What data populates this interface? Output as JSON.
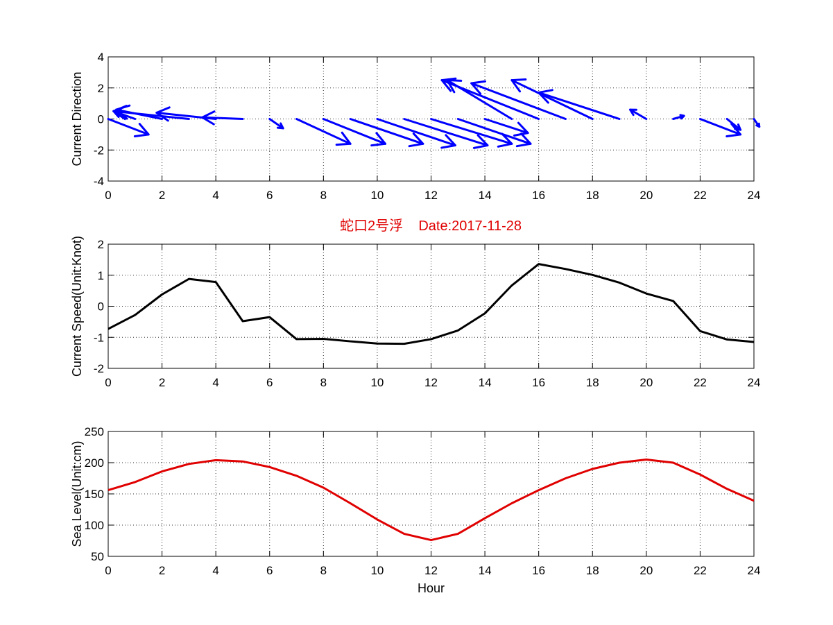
{
  "figure": {
    "title": "蛇口2号浮    Date:2017-11-28",
    "title_color": "#e00000"
  },
  "chart_data": [
    {
      "type": "quiver",
      "title": "",
      "xlabel": "",
      "ylabel": "Current Direction",
      "xlim": [
        0,
        24
      ],
      "ylim": [
        -4,
        4
      ],
      "xticks": [
        0,
        2,
        4,
        6,
        8,
        10,
        12,
        14,
        16,
        18,
        20,
        22,
        24
      ],
      "yticks": [
        -4,
        -2,
        0,
        2,
        4
      ],
      "grid": true,
      "color": "#0000ff",
      "series": [
        {
          "x": [
            0,
            1,
            2,
            3,
            4,
            5,
            6,
            7,
            8,
            9,
            10,
            11,
            12,
            13,
            14,
            15,
            16,
            17,
            18,
            19,
            20,
            21,
            22,
            23,
            24
          ],
          "y": [
            0,
            0,
            0,
            0,
            0,
            0,
            0,
            0,
            0,
            0,
            0,
            0,
            0,
            0,
            0,
            0,
            0,
            0,
            0,
            0,
            0,
            0,
            0,
            0,
            0
          ],
          "u": [
            1.5,
            -0.8,
            -1.7,
            -2.8,
            -2.2,
            -1.5,
            0.5,
            2.0,
            2.3,
            2.7,
            2.9,
            3.1,
            3.0,
            2.7,
            1.6,
            -2.4,
            -3.6,
            -3.5,
            -3.0,
            -3.0,
            -0.6,
            0.4,
            1.5,
            0.5,
            0.2
          ],
          "v": [
            -1.0,
            0.5,
            0.6,
            0.5,
            0.4,
            0.1,
            -0.6,
            -1.6,
            -1.6,
            -1.6,
            -1.7,
            -1.7,
            -1.6,
            -1.6,
            -0.9,
            2.5,
            2.5,
            2.3,
            2.5,
            1.7,
            0.6,
            0.2,
            -1.0,
            -0.7,
            -0.5
          ]
        }
      ]
    },
    {
      "type": "line",
      "title": "",
      "xlabel": "",
      "ylabel": "Current Speed(Unit:Knot)",
      "xlim": [
        0,
        24
      ],
      "ylim": [
        -2,
        2
      ],
      "xticks": [
        0,
        2,
        4,
        6,
        8,
        10,
        12,
        14,
        16,
        18,
        20,
        22,
        24
      ],
      "yticks": [
        -2,
        -1,
        0,
        1,
        2
      ],
      "grid": true,
      "color": "#000000",
      "series": [
        {
          "x": [
            0,
            1,
            2,
            3,
            4,
            5,
            6,
            7,
            8,
            9,
            10,
            11,
            12,
            13,
            14,
            15,
            16,
            17,
            18,
            19,
            20,
            21,
            22,
            23,
            24
          ],
          "values": [
            -0.73,
            -0.28,
            0.38,
            0.88,
            0.78,
            -0.48,
            -0.35,
            -1.06,
            -1.05,
            -1.13,
            -1.2,
            -1.21,
            -1.06,
            -0.78,
            -0.23,
            0.67,
            1.36,
            1.2,
            1.01,
            0.76,
            0.41,
            0.17,
            -0.8,
            -1.07,
            -1.15
          ]
        }
      ]
    },
    {
      "type": "line",
      "title": "",
      "xlabel": "Hour",
      "ylabel": "Sea Level(Unit:cm)",
      "xlim": [
        0,
        24
      ],
      "ylim": [
        50,
        250
      ],
      "xticks": [
        0,
        2,
        4,
        6,
        8,
        10,
        12,
        14,
        16,
        18,
        20,
        22,
        24
      ],
      "yticks": [
        50,
        100,
        150,
        200,
        250
      ],
      "grid": true,
      "color": "#e00000",
      "series": [
        {
          "x": [
            0,
            1,
            2,
            3,
            4,
            5,
            6,
            7,
            8,
            9,
            10,
            11,
            12,
            13,
            14,
            15,
            16,
            17,
            18,
            19,
            20,
            21,
            22,
            23,
            24
          ],
          "values": [
            156,
            169,
            186,
            198,
            204,
            202,
            193,
            179,
            160,
            135,
            109,
            86,
            76,
            86,
            111,
            135,
            156,
            175,
            190,
            200,
            205,
            200,
            181,
            158,
            139
          ]
        }
      ]
    }
  ]
}
